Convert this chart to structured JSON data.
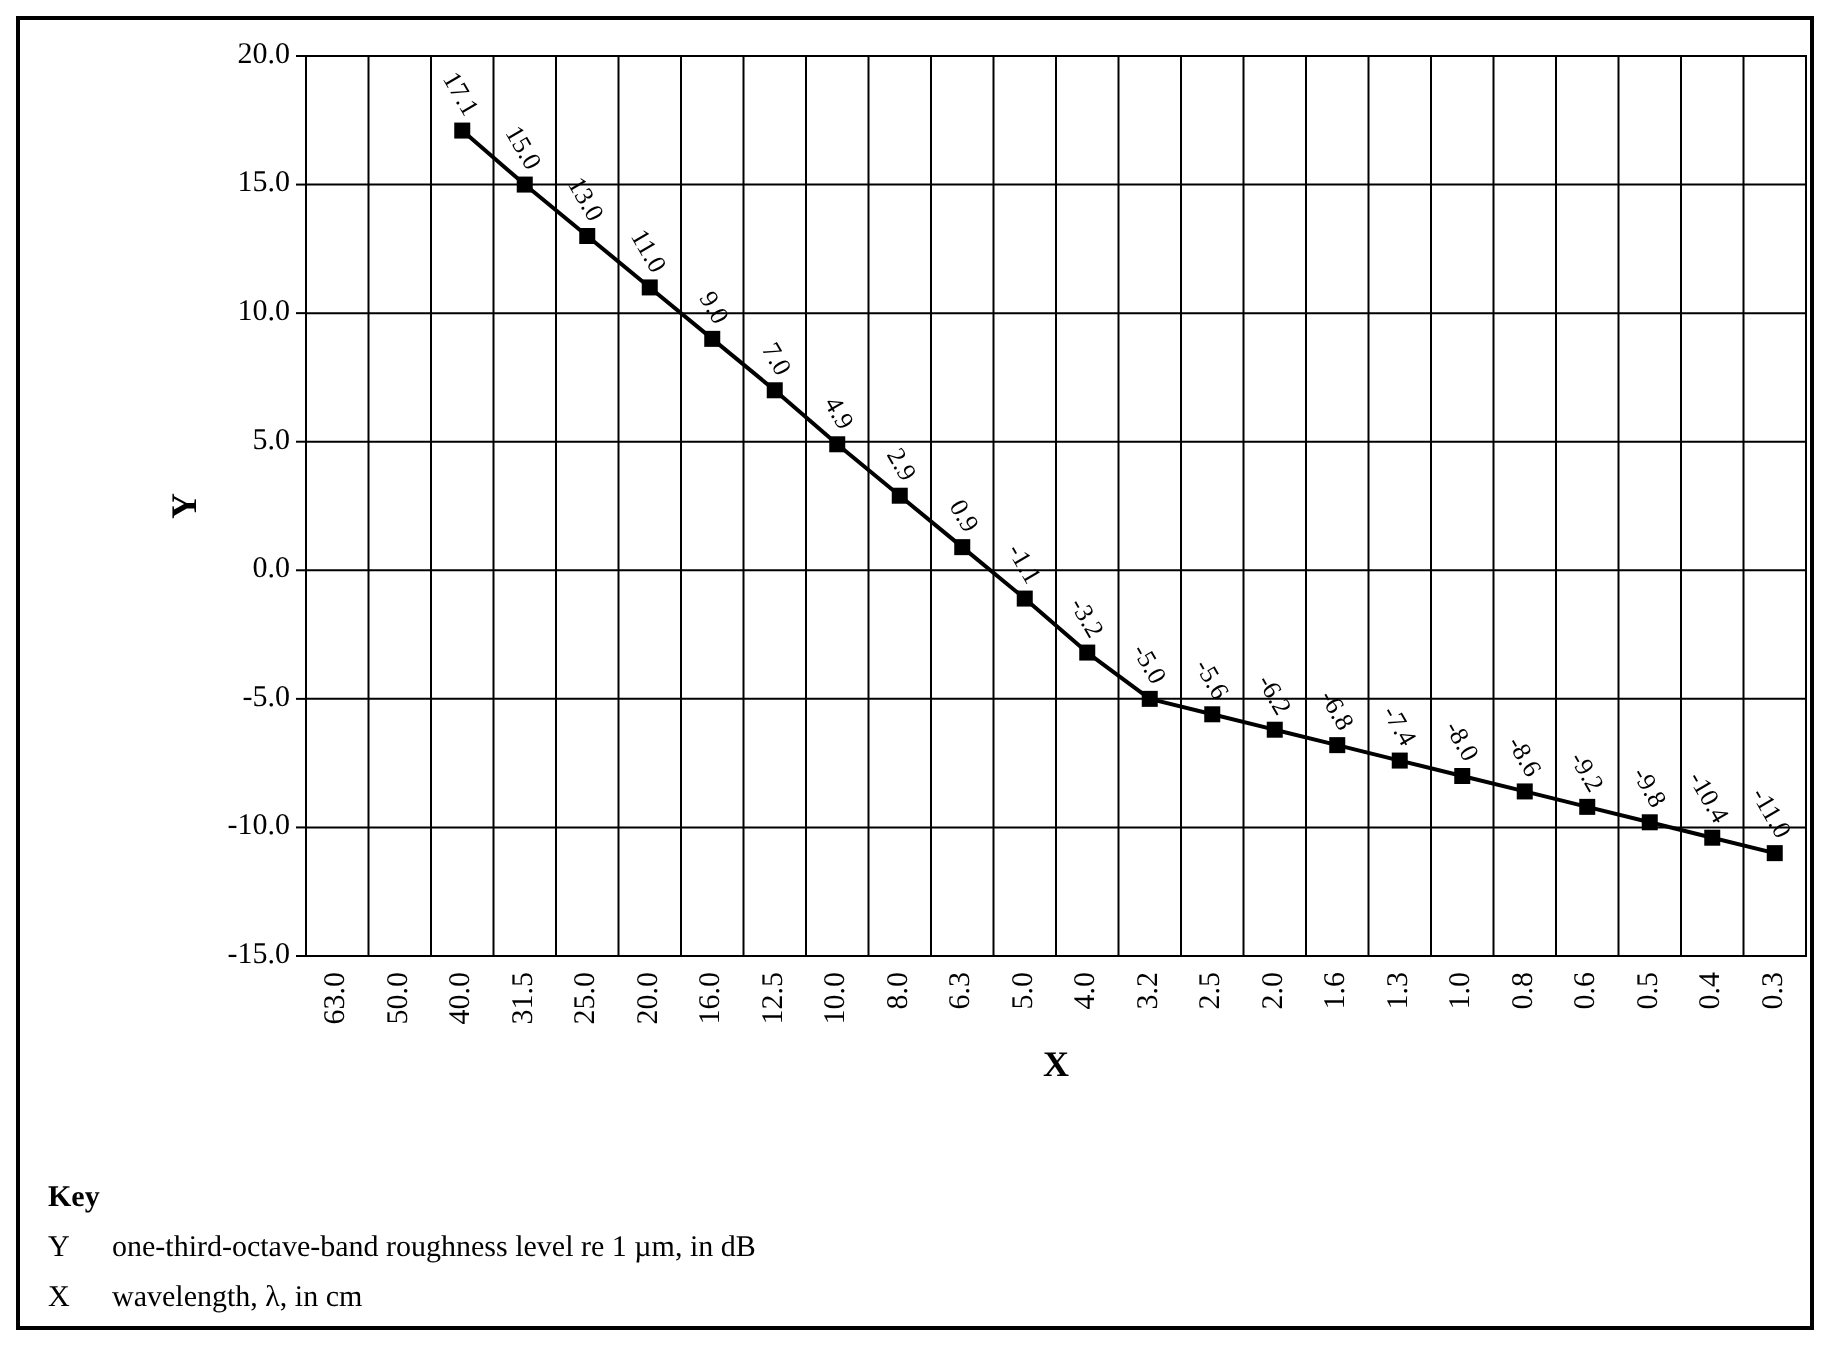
{
  "chart_data": {
    "type": "line",
    "xlabel": "X",
    "ylabel": "Y",
    "categories": [
      "63.0",
      "50.0",
      "40.0",
      "31.5",
      "25.0",
      "20.0",
      "16.0",
      "12.5",
      "10.0",
      "8.0",
      "6.3",
      "5.0",
      "4.0",
      "3.2",
      "2.5",
      "2.0",
      "1.6",
      "1.3",
      "1.0",
      "0.8",
      "0.6",
      "0.5",
      "0.4",
      "0.3"
    ],
    "series": [
      {
        "color": "#000000",
        "values": [
          null,
          null,
          17.1,
          15.0,
          13.0,
          11.0,
          9.0,
          7.0,
          4.9,
          2.9,
          0.9,
          -1.1,
          -3.2,
          -5.0,
          -5.6,
          -6.2,
          -6.8,
          -7.4,
          -8.0,
          -8.6,
          -9.2,
          -9.8,
          -10.4,
          -11.0
        ],
        "value_labels": [
          null,
          null,
          "17.1",
          "15.0",
          "13.0",
          "11.0",
          "9.0",
          "7.0",
          "4.9",
          "2.9",
          "0.9",
          "-1.1",
          "-3.2",
          "-5.0",
          "-5.6",
          "-6.2",
          "-6.8",
          "-7.4",
          "-8.0",
          "-8.6",
          "-9.2",
          "-9.8",
          "-10.4",
          "-11.0"
        ]
      }
    ],
    "ylim": [
      -15,
      20
    ],
    "yticks": [
      {
        "value": -15,
        "label": "-15.0"
      },
      {
        "value": -10,
        "label": "-10.0"
      },
      {
        "value": -5,
        "label": "-5.0"
      },
      {
        "value": 0,
        "label": "0.0"
      },
      {
        "value": 5,
        "label": "5.0"
      },
      {
        "value": 10,
        "label": "10.0"
      },
      {
        "value": 15,
        "label": "15.0"
      },
      {
        "value": 20,
        "label": "20.0"
      }
    ],
    "grid": true,
    "marker": "square",
    "line_style": "solid",
    "annotations": [
      "Key",
      "Y one-third-octave-band roughness level re 1 µm, in dB",
      "X wavelength, λ, in cm"
    ]
  }
}
